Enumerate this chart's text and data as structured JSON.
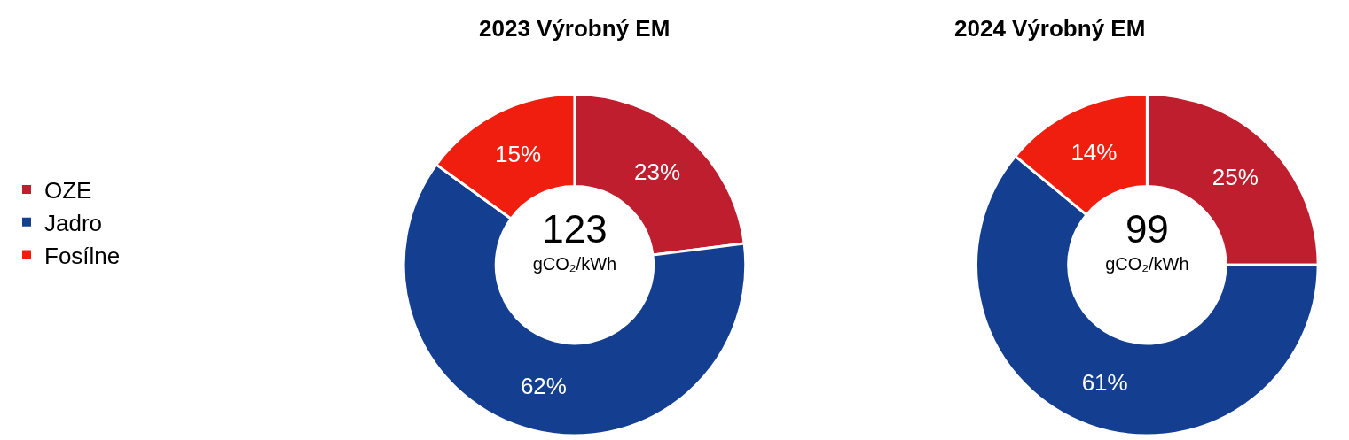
{
  "chart_data": [
    {
      "type": "donut",
      "title": "2023 Výrobný EM",
      "categories": [
        "OZE",
        "Jadro",
        "Fosílne"
      ],
      "values": [
        23,
        62,
        15
      ],
      "colors": [
        "#be1e2d",
        "#143f91",
        "#f01e0f"
      ],
      "value_labels": [
        "23%",
        "62%",
        "15%"
      ],
      "annotations": [
        "123",
        "gCO₂/kWh"
      ],
      "legend": "left"
    },
    {
      "type": "donut",
      "title": "2024 Výrobný EM",
      "categories": [
        null,
        null,
        null
      ],
      "values": [
        25,
        61,
        14
      ],
      "colors": [
        "#be1e2d",
        "#143f91",
        "#f01e0f"
      ],
      "value_labels": [
        "25%",
        "61%",
        "14%"
      ],
      "annotations": [
        "99",
        "gCO₂/kWh"
      ]
    }
  ]
}
